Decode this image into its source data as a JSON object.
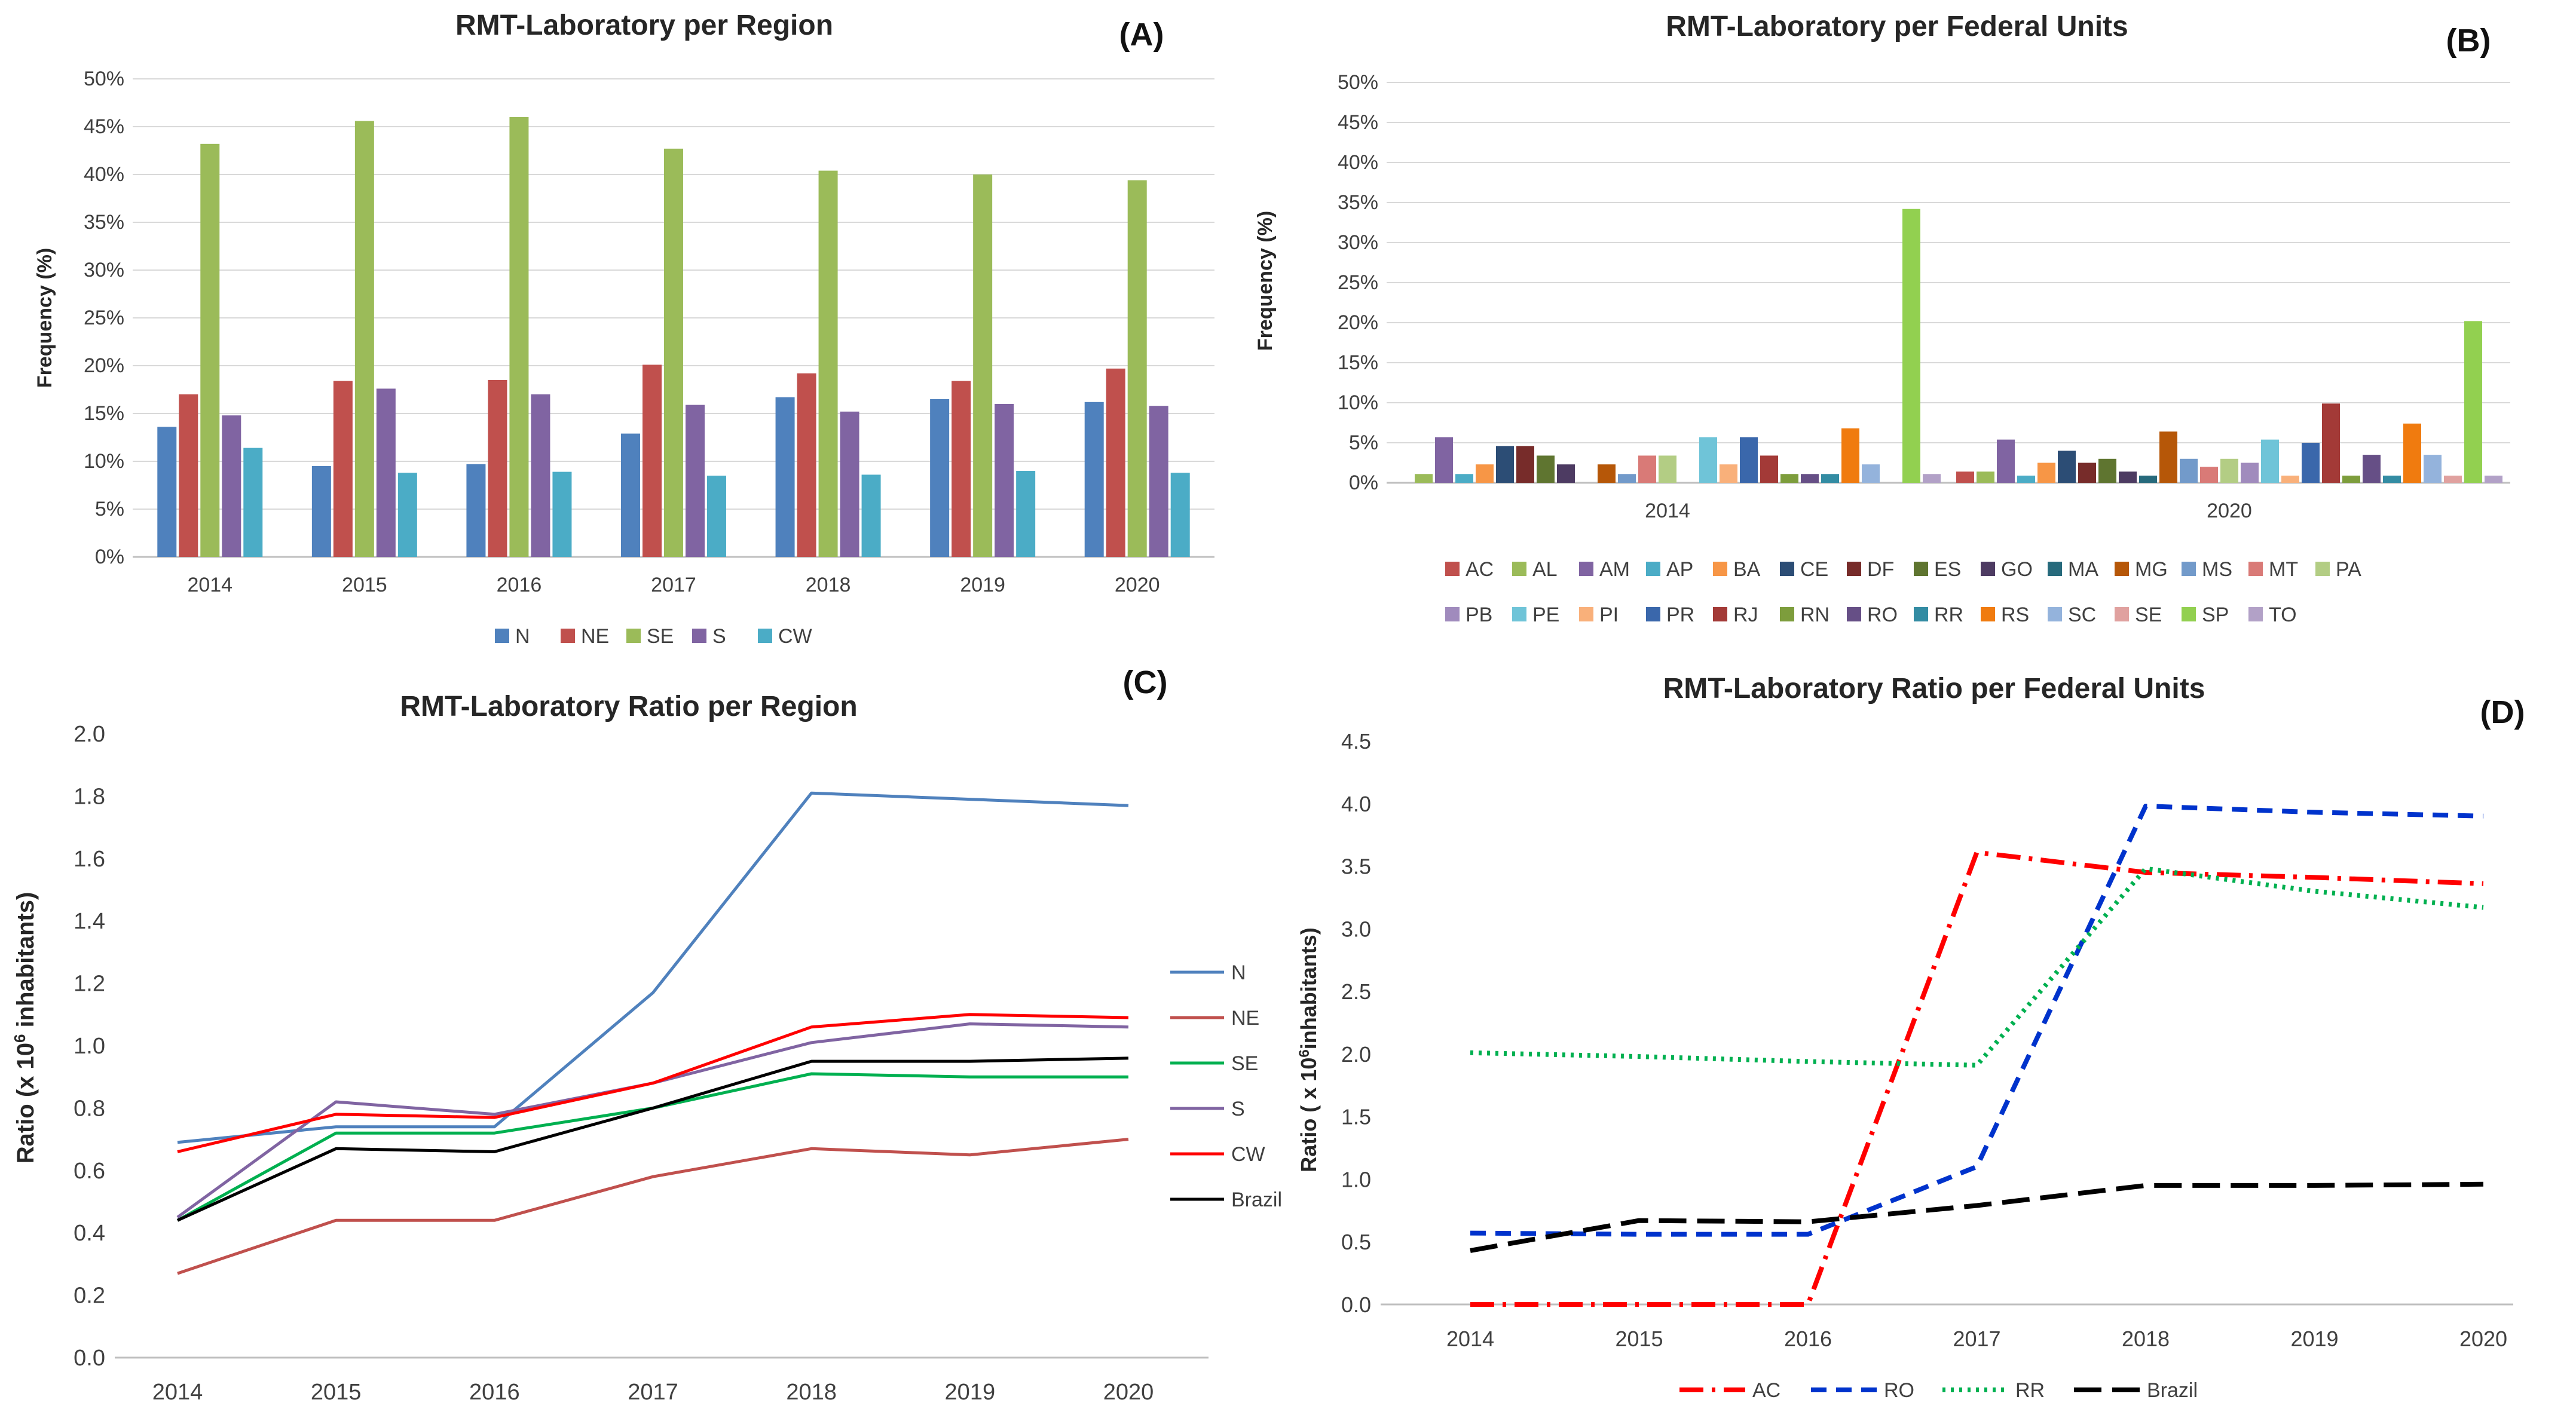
{
  "chart_data": [
    {
      "type": "bar",
      "panel_label": "(A)",
      "title": "RMT-Laboratory per Region",
      "xlabel": "",
      "ylabel": "Frequency (%)",
      "ylim": [
        0,
        50
      ],
      "yticks": [
        "0%",
        "5%",
        "10%",
        "15%",
        "20%",
        "25%",
        "30%",
        "35%",
        "40%",
        "45%",
        "50%"
      ],
      "legend_position": "bottom",
      "categories": [
        "2014",
        "2015",
        "2016",
        "2017",
        "2018",
        "2019",
        "2020"
      ],
      "series": [
        {
          "name": "N",
          "color": "#4f81bd",
          "values": [
            13.6,
            9.5,
            9.7,
            12.9,
            16.7,
            16.5,
            16.2
          ]
        },
        {
          "name": "NE",
          "color": "#c0504d",
          "values": [
            17.0,
            18.4,
            18.5,
            20.1,
            19.2,
            18.4,
            19.7
          ]
        },
        {
          "name": "SE",
          "color": "#9bbb59",
          "values": [
            43.2,
            45.6,
            46.0,
            42.7,
            40.4,
            40.0,
            39.4
          ]
        },
        {
          "name": "S",
          "color": "#8064a2",
          "values": [
            14.8,
            17.6,
            17.0,
            15.9,
            15.2,
            16.0,
            15.8
          ]
        },
        {
          "name": "CW",
          "color": "#4bacc6",
          "values": [
            11.4,
            8.8,
            8.9,
            8.5,
            8.6,
            9.0,
            8.8
          ]
        }
      ]
    },
    {
      "type": "bar",
      "panel_label": "(B)",
      "title": "RMT-Laboratory per Federal Units",
      "xlabel": "",
      "ylabel": "Frequency (%)",
      "ylim": [
        0,
        50
      ],
      "yticks": [
        "0%",
        "5%",
        "10%",
        "15%",
        "20%",
        "25%",
        "30%",
        "35%",
        "40%",
        "45%",
        "50%"
      ],
      "legend_position": "bottom",
      "categories": [
        "2014",
        "2020"
      ],
      "series": [
        {
          "name": "AC",
          "color": "#c0504d",
          "values": [
            0.0,
            1.4
          ]
        },
        {
          "name": "AL",
          "color": "#9bbb59",
          "values": [
            1.1,
            1.4
          ]
        },
        {
          "name": "AM",
          "color": "#8064a2",
          "values": [
            5.7,
            5.4
          ]
        },
        {
          "name": "AP",
          "color": "#4bacc6",
          "values": [
            1.1,
            0.9
          ]
        },
        {
          "name": "BA",
          "color": "#f79646",
          "values": [
            2.3,
            2.5
          ]
        },
        {
          "name": "CE",
          "color": "#2c4d75",
          "values": [
            4.6,
            4.0
          ]
        },
        {
          "name": "DF",
          "color": "#772c2a",
          "values": [
            4.6,
            2.5
          ]
        },
        {
          "name": "ES",
          "color": "#5f7530",
          "values": [
            3.4,
            3.0
          ]
        },
        {
          "name": "GO",
          "color": "#4d3b62",
          "values": [
            2.3,
            1.4
          ]
        },
        {
          "name": "MA",
          "color": "#276a7c",
          "values": [
            0.0,
            0.9
          ]
        },
        {
          "name": "MG",
          "color": "#b65708",
          "values": [
            2.3,
            6.4
          ]
        },
        {
          "name": "MS",
          "color": "#729aca",
          "values": [
            1.1,
            3.0
          ]
        },
        {
          "name": "MT",
          "color": "#d97a77",
          "values": [
            3.4,
            2.0
          ]
        },
        {
          "name": "PA",
          "color": "#b3cd84",
          "values": [
            3.4,
            3.0
          ]
        },
        {
          "name": "PB",
          "color": "#a08bbd",
          "values": [
            0.0,
            2.5
          ]
        },
        {
          "name": "PE",
          "color": "#6fc4d8",
          "values": [
            5.7,
            5.4
          ]
        },
        {
          "name": "PI",
          "color": "#f9b07a",
          "values": [
            2.3,
            0.9
          ]
        },
        {
          "name": "PR",
          "color": "#3a67ab",
          "values": [
            5.7,
            5.0
          ]
        },
        {
          "name": "RJ",
          "color": "#a33a37",
          "values": [
            3.4,
            9.9
          ]
        },
        {
          "name": "RN",
          "color": "#7d9d3c",
          "values": [
            1.1,
            0.9
          ]
        },
        {
          "name": "RO",
          "color": "#664f86",
          "values": [
            1.1,
            3.5
          ]
        },
        {
          "name": "RR",
          "color": "#338ca3",
          "values": [
            1.1,
            0.9
          ]
        },
        {
          "name": "RS",
          "color": "#f07b0f",
          "values": [
            6.8,
            7.4
          ]
        },
        {
          "name": "SC",
          "color": "#94b3dc",
          "values": [
            2.3,
            3.5
          ]
        },
        {
          "name": "SE",
          "color": "#e0a19f",
          "values": [
            0.0,
            0.9
          ]
        },
        {
          "name": "SP",
          "color": "#92d050",
          "values": [
            34.2,
            20.2
          ]
        },
        {
          "name": "TO",
          "color": "#b2a1c7",
          "values": [
            1.1,
            0.9
          ]
        }
      ]
    },
    {
      "type": "line",
      "panel_label": "(C)",
      "title": "RMT-Laboratory Ratio per Region",
      "xlabel": "",
      "ylabel": "Ratio (x 10",
      "ylabel_sup": "6",
      "ylabel_end": " inhabitants)",
      "ylim": [
        0,
        2.0
      ],
      "yticks": [
        "0.0",
        "0.2",
        "0.4",
        "0.6",
        "0.8",
        "1.0",
        "1.2",
        "1.4",
        "1.6",
        "1.8",
        "2.0"
      ],
      "legend_position": "right",
      "x": [
        "2014",
        "2015",
        "2016",
        "2017",
        "2018",
        "2019",
        "2020"
      ],
      "series": [
        {
          "name": "N",
          "color": "#4f81bd",
          "values": [
            0.69,
            0.74,
            0.74,
            1.17,
            1.81,
            1.79,
            1.77
          ]
        },
        {
          "name": "NE",
          "color": "#c0504d",
          "values": [
            0.27,
            0.44,
            0.44,
            0.58,
            0.67,
            0.65,
            0.7
          ]
        },
        {
          "name": "SE",
          "color": "#00b050",
          "values": [
            0.44,
            0.72,
            0.72,
            0.8,
            0.91,
            0.9,
            0.9
          ]
        },
        {
          "name": "S",
          "color": "#8064a2",
          "values": [
            0.45,
            0.82,
            0.78,
            0.88,
            1.01,
            1.07,
            1.06
          ]
        },
        {
          "name": "CW",
          "color": "#ff0000",
          "values": [
            0.66,
            0.78,
            0.77,
            0.88,
            1.06,
            1.1,
            1.09
          ]
        },
        {
          "name": "Brazil",
          "color": "#000000",
          "values": [
            0.44,
            0.67,
            0.66,
            0.8,
            0.95,
            0.95,
            0.96
          ]
        }
      ]
    },
    {
      "type": "line",
      "panel_label": "(D)",
      "title": "RMT-Laboratory Ratio  per Federal Units",
      "xlabel": "",
      "ylabel": "Ratio ( x 10",
      "ylabel_sup": "6",
      "ylabel_end": "inhabitants)",
      "ylim": [
        0,
        4.5
      ],
      "yticks": [
        "0.0",
        "0.5",
        "1.0",
        "1.5",
        "2.0",
        "2.5",
        "3.0",
        "3.5",
        "4.0",
        "4.5"
      ],
      "legend_position": "bottom",
      "x": [
        "2014",
        "2015",
        "2016",
        "2017",
        "2018",
        "2019",
        "2020"
      ],
      "series": [
        {
          "name": "AC",
          "color": "#ff0000",
          "dash": "dashdot",
          "values": [
            0.0,
            0.0,
            0.0,
            3.61,
            3.45,
            3.41,
            3.36
          ]
        },
        {
          "name": "RO",
          "color": "#0033cc",
          "dash": "dash",
          "values": [
            0.57,
            0.56,
            0.56,
            1.1,
            3.98,
            3.93,
            3.9
          ]
        },
        {
          "name": "RR",
          "color": "#00b050",
          "dash": "dot",
          "values": [
            2.01,
            1.98,
            1.94,
            1.91,
            3.48,
            3.3,
            3.17
          ]
        },
        {
          "name": "Brazil",
          "color": "#000000",
          "dash": "longdash",
          "values": [
            0.43,
            0.67,
            0.66,
            0.79,
            0.95,
            0.95,
            0.96
          ]
        }
      ]
    }
  ]
}
